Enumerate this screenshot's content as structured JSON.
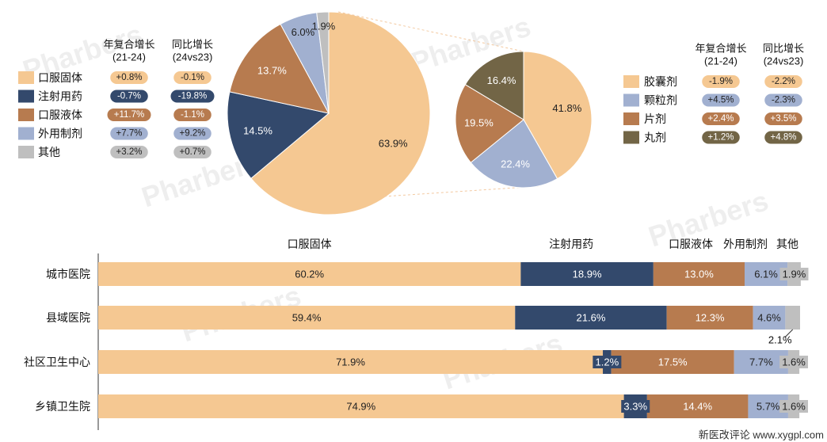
{
  "left_legend": {
    "header_cagr": [
      "年复合增长",
      "(21-24)"
    ],
    "header_yoy": [
      "同比增长",
      "(24vs23)"
    ],
    "items": [
      {
        "label": "口服固体",
        "color": "#F5C892",
        "cagr": "+0.8%",
        "yoy": "-0.1%"
      },
      {
        "label": "注射用药",
        "color": "#33496C",
        "cagr": "-0.7%",
        "yoy": "-19.8%"
      },
      {
        "label": "口服液体",
        "color": "#B77B4F",
        "cagr": "+11.7%",
        "yoy": "-1.1%"
      },
      {
        "label": "外用制剂",
        "color": "#A1B0D0",
        "cagr": "+7.7%",
        "yoy": "+9.2%"
      },
      {
        "label": "其他",
        "color": "#BFBFBF",
        "cagr": "+3.2%",
        "yoy": "+0.7%"
      }
    ]
  },
  "right_legend": {
    "header_cagr": [
      "年复合增长",
      "(21-24)"
    ],
    "header_yoy": [
      "同比增长",
      "(24vs23)"
    ],
    "items": [
      {
        "label": "胶囊剂",
        "color": "#F5C892",
        "cagr": "-1.9%",
        "yoy": "-2.2%"
      },
      {
        "label": "颗粒剂",
        "color": "#A1B0D0",
        "cagr": "+4.5%",
        "yoy": "-2.3%"
      },
      {
        "label": "片剂",
        "color": "#B77B4F",
        "cagr": "+2.4%",
        "yoy": "+3.5%"
      },
      {
        "label": "丸剂",
        "color": "#726546",
        "cagr": "+1.2%",
        "yoy": "+4.8%"
      }
    ]
  },
  "watermark": "Pharbers",
  "footer_credit": "新医改评论 www.xygpl.com",
  "chart_data": [
    {
      "type": "pie",
      "slices": [
        {
          "label": "口服固体",
          "value": 63.9,
          "display": "63.9%",
          "color": "#F5C892"
        },
        {
          "label": "注射用药",
          "value": 14.5,
          "display": "14.5%",
          "color": "#33496C"
        },
        {
          "label": "口服液体",
          "value": 13.7,
          "display": "13.7%",
          "color": "#B77B4F"
        },
        {
          "label": "外用制剂",
          "value": 6.0,
          "display": "6.0%",
          "color": "#A1B0D0"
        },
        {
          "label": "其他",
          "value": 1.9,
          "display": "1.9%",
          "color": "#BFBFBF"
        }
      ]
    },
    {
      "type": "pie",
      "slices": [
        {
          "label": "胶囊剂",
          "value": 41.8,
          "display": "41.8%",
          "color": "#F5C892"
        },
        {
          "label": "颗粒剂",
          "value": 22.4,
          "display": "22.4%",
          "color": "#A1B0D0"
        },
        {
          "label": "片剂",
          "value": 19.5,
          "display": "19.5%",
          "color": "#B77B4F"
        },
        {
          "label": "丸剂",
          "value": 16.4,
          "display": "16.4%",
          "color": "#726546"
        }
      ]
    },
    {
      "type": "bar",
      "orientation": "horizontal",
      "stacked": true,
      "xlim": [
        0,
        100
      ],
      "series_labels": [
        "口服固体",
        "注射用药",
        "口服液体",
        "外用制剂",
        "其他"
      ],
      "series_colors": [
        "#F5C892",
        "#33496C",
        "#B77B4F",
        "#A1B0D0",
        "#BFBFBF"
      ],
      "categories": [
        "城市医院",
        "县域医院",
        "社区卫生中心",
        "乡镇卫生院"
      ],
      "values": [
        [
          60.2,
          18.9,
          13.0,
          6.1,
          1.9
        ],
        [
          59.4,
          21.6,
          12.3,
          4.6,
          2.1
        ],
        [
          71.9,
          1.2,
          17.5,
          7.7,
          1.6
        ],
        [
          74.9,
          3.3,
          14.4,
          5.7,
          1.6
        ]
      ],
      "labels": [
        [
          "60.2%",
          "18.9%",
          "13.0%",
          "6.1%",
          "1.9%"
        ],
        [
          "59.4%",
          "21.6%",
          "12.3%",
          "4.6%",
          "2.1%"
        ],
        [
          "71.9%",
          "1.2%",
          "17.5%",
          "7.7%",
          "1.6%"
        ],
        [
          "74.9%",
          "3.3%",
          "14.4%",
          "5.7%",
          "1.6%"
        ]
      ]
    }
  ]
}
